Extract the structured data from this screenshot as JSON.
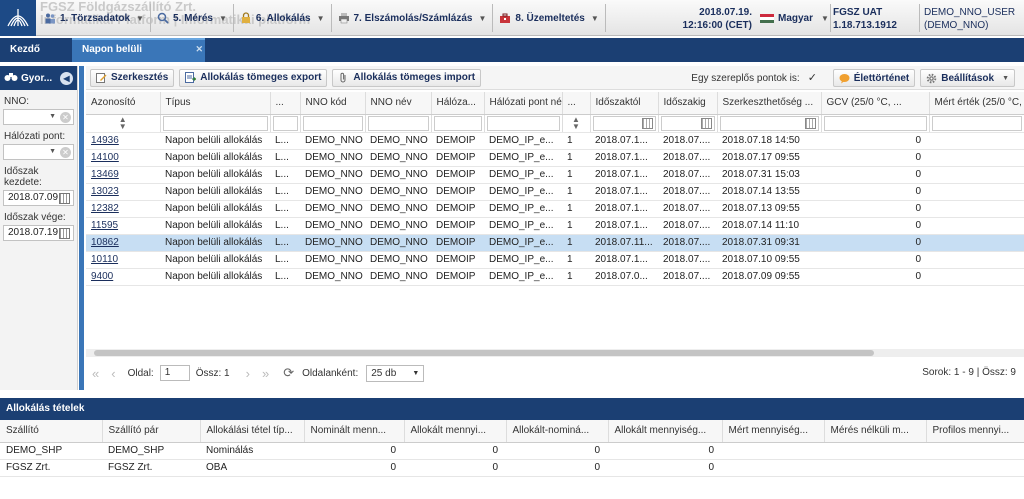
{
  "header": {
    "logo_text_line1": "FGSZ Földgázszállító Zrt.",
    "logo_text_line2": "Informatikai Platform | Informatikai platform",
    "menu": [
      {
        "label": "1. Törzsadatok"
      },
      {
        "label": "5. Mérés"
      },
      {
        "label": "6. Allokálás"
      },
      {
        "label": "7. Elszámolás/Számlázás"
      },
      {
        "label": "8. Üzemeltetés"
      }
    ],
    "date": "2018.07.19.",
    "time": "12:16:00 (CET)",
    "language": "Magyar",
    "env_name": "FGSZ UAT",
    "env_version": "1.18.713.1912",
    "user_line1": "DEMO_NNO_USER",
    "user_line2": "(DEMO_NNO)"
  },
  "tabs": [
    {
      "label": "Kezdő oldal"
    },
    {
      "label": "Napon belüli allokálások"
    }
  ],
  "sidebar": {
    "title": "Gyor...",
    "nno_label": "NNO:",
    "halozati_label": "Hálózati pont:",
    "start_label": "Időszak kezdete:",
    "start_value": "2018.07.09",
    "end_label": "Időszak vége:",
    "end_value": "2018.07.19"
  },
  "toolbar": {
    "edit": "Szerkesztés",
    "export": "Allokálás tömeges export",
    "import": "Allokálás tömeges import",
    "single_actor_label": "Egy szereplős pontok is:",
    "history": "Élettörténet",
    "settings": "Beállítások"
  },
  "grid": {
    "columns": [
      "Azonosító",
      "Típus",
      "...",
      "NNO kód",
      "NNO név",
      "Hálóza...",
      "Hálózati pont né...",
      "...",
      "Időszaktól",
      "Időszakig",
      "Szerkeszthetőség ...",
      "GCV (25/0 °C, ...",
      "Mért érték (25/0 °C, ..."
    ],
    "rows": [
      [
        "14936",
        "Napon belüli allokálás",
        "L...",
        "DEMO_NNO",
        "DEMO_NNO",
        "DEMOIP",
        "DEMO_IP_e...",
        "1",
        "2018.07.1...",
        "2018.07....",
        "2018.07.18 14:50",
        "0",
        ""
      ],
      [
        "14100",
        "Napon belüli allokálás",
        "L...",
        "DEMO_NNO",
        "DEMO_NNO",
        "DEMOIP",
        "DEMO_IP_e...",
        "1",
        "2018.07.1...",
        "2018.07....",
        "2018.07.17 09:55",
        "0",
        ""
      ],
      [
        "13469",
        "Napon belüli allokálás",
        "L...",
        "DEMO_NNO",
        "DEMO_NNO",
        "DEMOIP",
        "DEMO_IP_e...",
        "1",
        "2018.07.1...",
        "2018.07....",
        "2018.07.31 15:03",
        "0",
        ""
      ],
      [
        "13023",
        "Napon belüli allokálás",
        "L...",
        "DEMO_NNO",
        "DEMO_NNO",
        "DEMOIP",
        "DEMO_IP_e...",
        "1",
        "2018.07.1...",
        "2018.07....",
        "2018.07.14 13:55",
        "0",
        ""
      ],
      [
        "12382",
        "Napon belüli allokálás",
        "L...",
        "DEMO_NNO",
        "DEMO_NNO",
        "DEMOIP",
        "DEMO_IP_e...",
        "1",
        "2018.07.1...",
        "2018.07....",
        "2018.07.13 09:55",
        "0",
        ""
      ],
      [
        "11595",
        "Napon belüli allokálás",
        "L...",
        "DEMO_NNO",
        "DEMO_NNO",
        "DEMOIP",
        "DEMO_IP_e...",
        "1",
        "2018.07.1...",
        "2018.07....",
        "2018.07.14 11:10",
        "0",
        ""
      ],
      [
        "10862",
        "Napon belüli allokálás",
        "L...",
        "DEMO_NNO",
        "DEMO_NNO",
        "DEMOIP",
        "DEMO_IP_e...",
        "1",
        "2018.07.11...",
        "2018.07....",
        "2018.07.31 09:31",
        "0",
        ""
      ],
      [
        "10110",
        "Napon belüli allokálás",
        "L...",
        "DEMO_NNO",
        "DEMO_NNO",
        "DEMOIP",
        "DEMO_IP_e...",
        "1",
        "2018.07.1...",
        "2018.07....",
        "2018.07.10 09:55",
        "0",
        ""
      ],
      [
        "9400",
        "Napon belüli allokálás",
        "L...",
        "DEMO_NNO",
        "DEMO_NNO",
        "DEMOIP",
        "DEMO_IP_e...",
        "1",
        "2018.07.0...",
        "2018.07....",
        "2018.07.09 09:55",
        "0",
        ""
      ]
    ],
    "selected_row": "10862"
  },
  "pager": {
    "page_label": "Oldal:",
    "page_value": "1",
    "total_label": "Össz: 1",
    "per_page_label": "Oldalanként:",
    "per_page_value": "25 db",
    "info": "Sorok: 1 - 9 | Össz: 9"
  },
  "bottom": {
    "title": "Allokálás tételek",
    "columns": [
      "Szállító",
      "Szállító pár",
      "Allokálási tétel típ...",
      "Nominált menn...",
      "Allokált mennyi...",
      "Allokált-nominá...",
      "Allokált mennyiség...",
      "Mért mennyiség...",
      "Mérés nélküli m...",
      "Profilos mennyi..."
    ],
    "rows": [
      [
        "DEMO_SHP",
        "DEMO_SHP",
        "Nominálás",
        "0",
        "0",
        "0",
        "0",
        "",
        "",
        ""
      ],
      [
        "FGSZ Zrt.",
        "FGSZ Zrt.",
        "OBA",
        "0",
        "0",
        "0",
        "0",
        "",
        "",
        ""
      ]
    ]
  },
  "colors": {
    "navy": "#1b3f73",
    "active_tab": "#3a76b8",
    "selected_row": "#c7def3"
  }
}
